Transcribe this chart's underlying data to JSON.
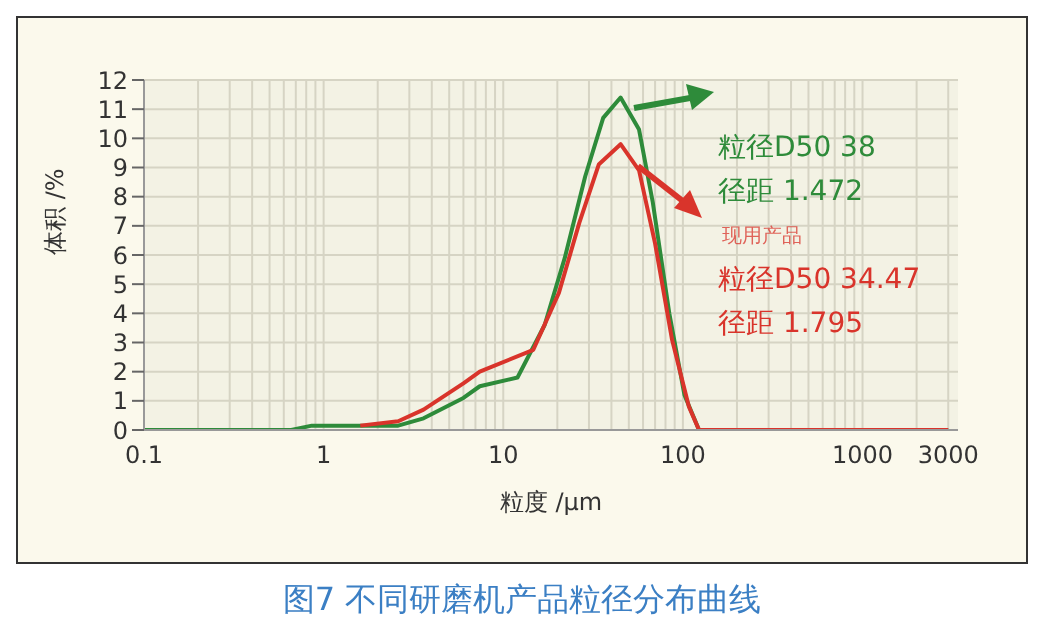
{
  "chart_data": {
    "type": "line",
    "title": "图7 不同研磨机产品粒径分布曲线",
    "xlabel": "粒度 /μm",
    "ylabel": "体积 /%",
    "log": "x",
    "grid": true,
    "marker": "none",
    "line_style": "solid",
    "xlim": [
      0.1,
      3400
    ],
    "xticks": [
      0.1,
      1,
      10,
      100,
      1000,
      3000
    ],
    "ylim": [
      0,
      12
    ],
    "yticks": [
      0,
      1,
      2,
      3,
      4,
      5,
      6,
      7,
      8,
      9,
      10,
      11,
      12
    ],
    "series": [
      {
        "color": "#2e8b3a",
        "x": [
          0.1,
          0.66,
          0.86,
          1.6,
          2.6,
          3.6,
          6,
          7.4,
          12,
          17,
          22,
          28.6,
          36,
          45,
          57,
          68,
          84,
          102,
          123,
          3000
        ],
        "values": [
          0,
          0,
          0.15,
          0.15,
          0.15,
          0.4,
          1.1,
          1.5,
          1.8,
          3.6,
          5.9,
          8.7,
          10.7,
          11.4,
          10.3,
          7.8,
          4,
          1.2,
          0,
          0
        ]
      },
      {
        "name": "现用产品",
        "color": "#d9342b",
        "x": [
          1.6,
          2.6,
          3.6,
          6,
          7.4,
          14.7,
          20.4,
          26.5,
          34,
          45,
          57,
          70,
          87,
          108,
          123,
          3000
        ],
        "values": [
          0.15,
          0.3,
          0.7,
          1.6,
          2.0,
          2.75,
          4.7,
          7.1,
          9.1,
          9.8,
          8.9,
          6.4,
          3.1,
          0.8,
          0,
          0
        ]
      }
    ],
    "annotations": [
      "粒径D50 38",
      "径距 1.472",
      "粒径D50 34.47",
      "径距 1.795"
    ]
  }
}
